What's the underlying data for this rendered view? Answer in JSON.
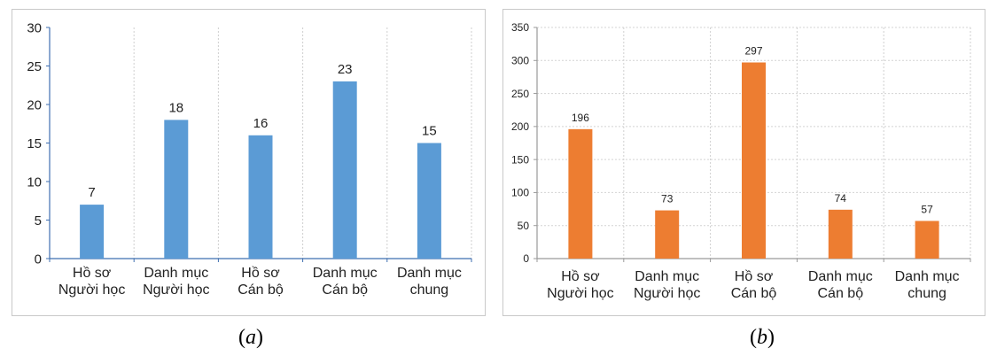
{
  "chart_data": [
    {
      "type": "bar",
      "categories": [
        [
          "Hồ sơ",
          "Người học"
        ],
        [
          "Danh mục",
          "Người học"
        ],
        [
          "Hồ sơ",
          "Cán bộ"
        ],
        [
          "Danh mục",
          "Cán bộ"
        ],
        [
          "Danh mục",
          "chung"
        ]
      ],
      "values": [
        7,
        18,
        16,
        23,
        15
      ],
      "data_labels": [
        "7",
        "18",
        "16",
        "23",
        "15"
      ],
      "ylim": [
        0,
        30
      ],
      "yticks": [
        "0",
        "5",
        "10",
        "15",
        "20",
        "25",
        "30"
      ],
      "grid": "vertical-dotted",
      "color": "#5b9bd5",
      "caption": "a"
    },
    {
      "type": "bar",
      "categories": [
        [
          "Hồ sơ",
          "Người học"
        ],
        [
          "Danh mục",
          "Người học"
        ],
        [
          "Hồ sơ",
          "Cán bộ"
        ],
        [
          "Danh mục",
          "Cán bộ"
        ],
        [
          "Danh mục",
          "chung"
        ]
      ],
      "values": [
        196,
        73,
        297,
        74,
        57
      ],
      "data_labels": [
        "196",
        "73",
        "297",
        "74",
        "57"
      ],
      "ylim": [
        0,
        350
      ],
      "yticks": [
        "0",
        "50",
        "100",
        "150",
        "200",
        "250",
        "300",
        "350"
      ],
      "grid": "both-dotted",
      "color": "#ed7d31",
      "caption": "b"
    }
  ]
}
